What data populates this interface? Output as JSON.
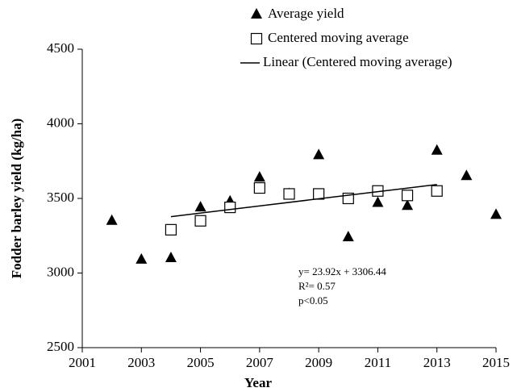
{
  "chart_data": {
    "type": "scatter",
    "xlabel": "Year",
    "ylabel": "Fodder barley yield (kg/ha)",
    "xlim": [
      2001,
      2015
    ],
    "xticks": [
      2001,
      2003,
      2005,
      2007,
      2009,
      2011,
      2013,
      2015
    ],
    "ylim": [
      2500,
      4500
    ],
    "yticks": [
      2500,
      3000,
      3500,
      4000,
      4500
    ],
    "series": [
      {
        "name": "Average yield",
        "marker": "triangle",
        "color": "#000000",
        "x": [
          2002,
          2003,
          2004,
          2005,
          2006,
          2007,
          2008,
          2009,
          2010,
          2011,
          2012,
          2013,
          2014,
          2015
        ],
        "values": [
          3350,
          3090,
          3100,
          3440,
          3480,
          3640,
          3530,
          3790,
          3240,
          3470,
          3450,
          3820,
          3650,
          3390
        ]
      },
      {
        "name": "Centered moving average",
        "marker": "square",
        "color": "#000000",
        "x": [
          2004,
          2005,
          2006,
          2007,
          2008,
          2009,
          2010,
          2011,
          2012,
          2013
        ],
        "values": [
          3290,
          3350,
          3440,
          3570,
          3530,
          3530,
          3500,
          3550,
          3520,
          3550
        ]
      },
      {
        "name": "Linear (Centered moving average)",
        "marker": "line",
        "color": "#000000",
        "x": [
          2004,
          2013
        ],
        "values": [
          3378,
          3593
        ]
      }
    ],
    "annotations": [
      "y= 23.92x + 3306.44",
      "R²= 0.57",
      "p<0.05"
    ]
  }
}
